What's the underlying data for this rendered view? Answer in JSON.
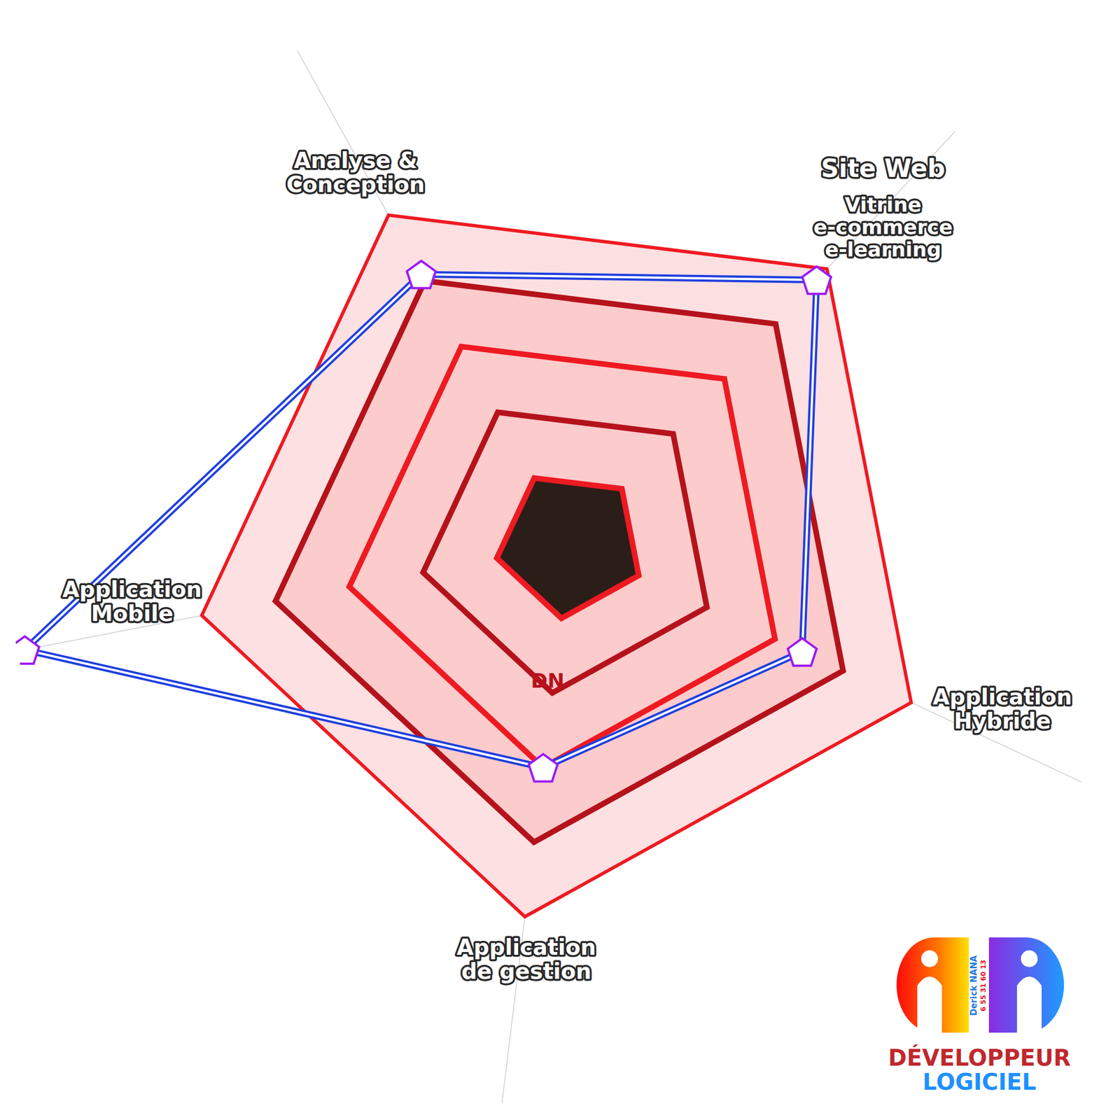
{
  "chart_data": {
    "type": "radar",
    "categories": [
      "Analyse & Conception",
      "Site Web",
      "Application Hybride",
      "Application de gestion",
      "Application Mobile"
    ],
    "values": [
      4.1,
      4.8,
      3.4,
      3.0,
      7.4
    ],
    "color": "#1f3fe0",
    "ylim": [
      0,
      7.5
    ],
    "yticks": [
      1,
      2,
      3,
      4,
      5
    ],
    "tick_labels": false,
    "marker": "pentagon",
    "annotations": [
      "Vitrine",
      "e-commerce",
      "e-learning",
      "DN"
    ]
  },
  "logo": {
    "title": "DÉVELOPPEUR",
    "subtitle": "LOGICIEL",
    "name": "Derick NANA",
    "phone": "6 55 31 60 13"
  }
}
